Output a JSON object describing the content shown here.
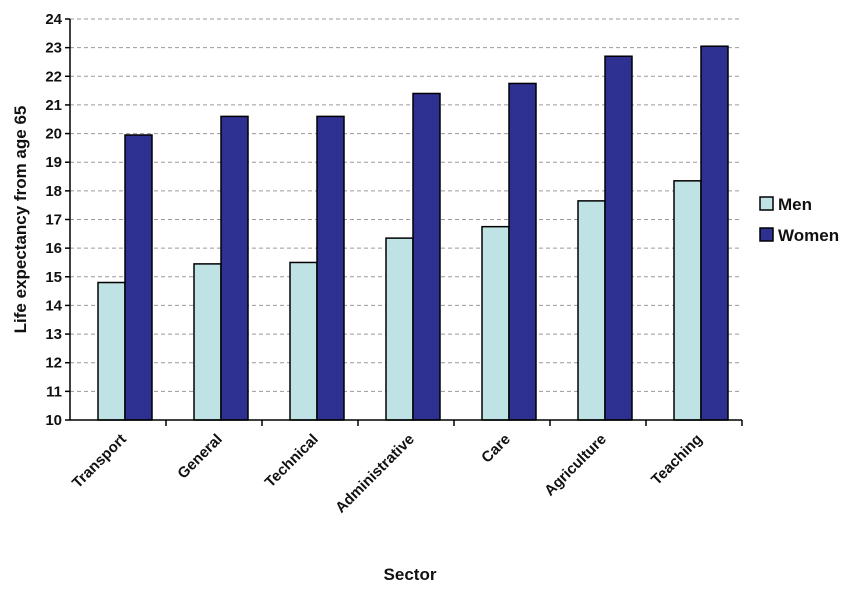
{
  "chart_data": {
    "type": "bar",
    "title": "",
    "xlabel": "Sector",
    "ylabel": "Life expectancy from age 65",
    "ylim": [
      10,
      24
    ],
    "yticks": [
      10,
      11,
      12,
      13,
      14,
      15,
      16,
      17,
      18,
      19,
      20,
      21,
      22,
      23,
      24
    ],
    "grid": "horizontal dashed",
    "legend_position": "right",
    "categories": [
      "Transport",
      "General",
      "Technical",
      "Administrative",
      "Care",
      "Agriculture",
      "Teaching"
    ],
    "series": [
      {
        "name": "Men",
        "color": "#bfe3e5",
        "values": [
          14.8,
          15.45,
          15.5,
          16.35,
          16.75,
          17.65,
          18.35
        ]
      },
      {
        "name": "Women",
        "color": "#2e3192",
        "values": [
          19.95,
          20.6,
          20.6,
          21.4,
          21.75,
          22.7,
          23.05
        ]
      }
    ]
  }
}
